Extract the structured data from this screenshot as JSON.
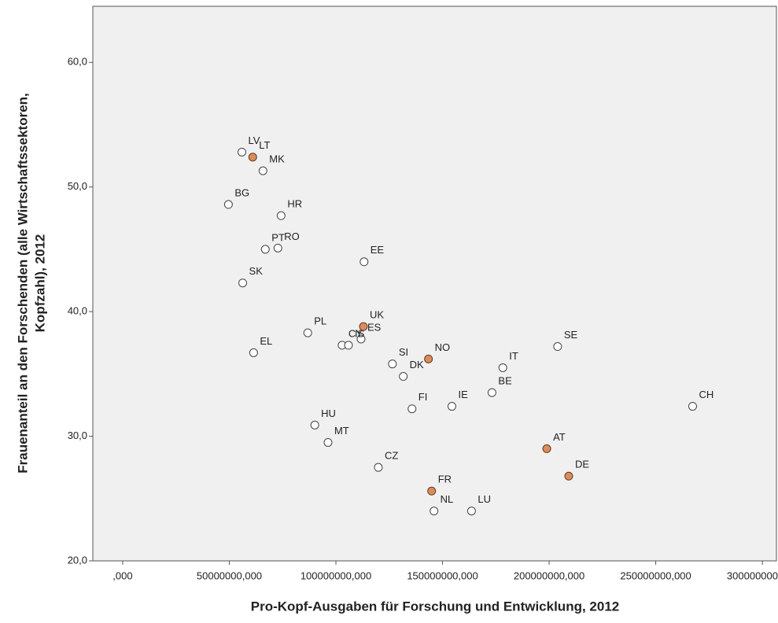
{
  "chart_data": {
    "type": "scatter",
    "xlabel": "Pro-Kopf-Ausgaben für Forschung und Entwicklung, 2012",
    "ylabel": [
      "Frauenanteil an den Forschenden (alle Wirtschaftssektoren,",
      "Kopfzahl), 2012"
    ],
    "xlim": [
      -14000000,
      306600000
    ],
    "ylim": [
      20,
      64.5
    ],
    "xticks": [
      {
        "value": 0,
        "label": ",000"
      },
      {
        "value": 50000000,
        "label": "50000000,000"
      },
      {
        "value": 100000000,
        "label": "100000000,000"
      },
      {
        "value": 150000000,
        "label": "150000000,000"
      },
      {
        "value": 200000000,
        "label": "200000000,000"
      },
      {
        "value": 250000000,
        "label": "250000000,000"
      },
      {
        "value": 300000000,
        "label": "300000000,000"
      }
    ],
    "yticks": [
      {
        "value": 20,
        "label": "20,0"
      },
      {
        "value": 30,
        "label": "30,0"
      },
      {
        "value": 40,
        "label": "40,0"
      },
      {
        "value": 50,
        "label": "50,0"
      },
      {
        "value": 60,
        "label": "60,0"
      }
    ],
    "series": [
      {
        "color": "#ffffff",
        "labels": [
          "LV",
          "MK",
          "BG",
          "HR",
          "PT",
          "RO",
          "SK",
          "EE",
          "PL",
          "ES",
          "CY",
          "IS",
          "EL",
          "SI",
          "DK",
          "FI",
          "IE",
          "IT",
          "BE",
          "SE",
          "CH",
          "HU",
          "MT",
          "CZ",
          "NL",
          "LU"
        ],
        "x": [
          55900000,
          65800000,
          49600000,
          74300000,
          66900000,
          72800000,
          56300000,
          113200000,
          86800000,
          111800000,
          102900000,
          105900000,
          61400000,
          126500000,
          131600000,
          135700000,
          154400000,
          178300000,
          173200000,
          204000000,
          267300000,
          90100000,
          96300000,
          119900000,
          146000000,
          163600000
        ],
        "values": [
          52.8,
          51.3,
          48.6,
          47.7,
          45.0,
          45.1,
          42.3,
          44.0,
          38.3,
          37.8,
          37.3,
          37.3,
          36.7,
          35.8,
          34.8,
          32.2,
          32.4,
          35.5,
          33.5,
          37.2,
          32.4,
          30.9,
          29.5,
          27.5,
          24.0,
          24.0
        ]
      },
      {
        "color": "#e8894a",
        "labels": [
          "LT",
          "UK",
          "NO",
          "FR",
          "AT",
          "DE"
        ],
        "x": [
          61000000,
          112900000,
          143400000,
          144900000,
          198900000,
          209200000
        ],
        "values": [
          52.4,
          38.8,
          36.2,
          25.6,
          29.0,
          26.8
        ]
      }
    ]
  }
}
